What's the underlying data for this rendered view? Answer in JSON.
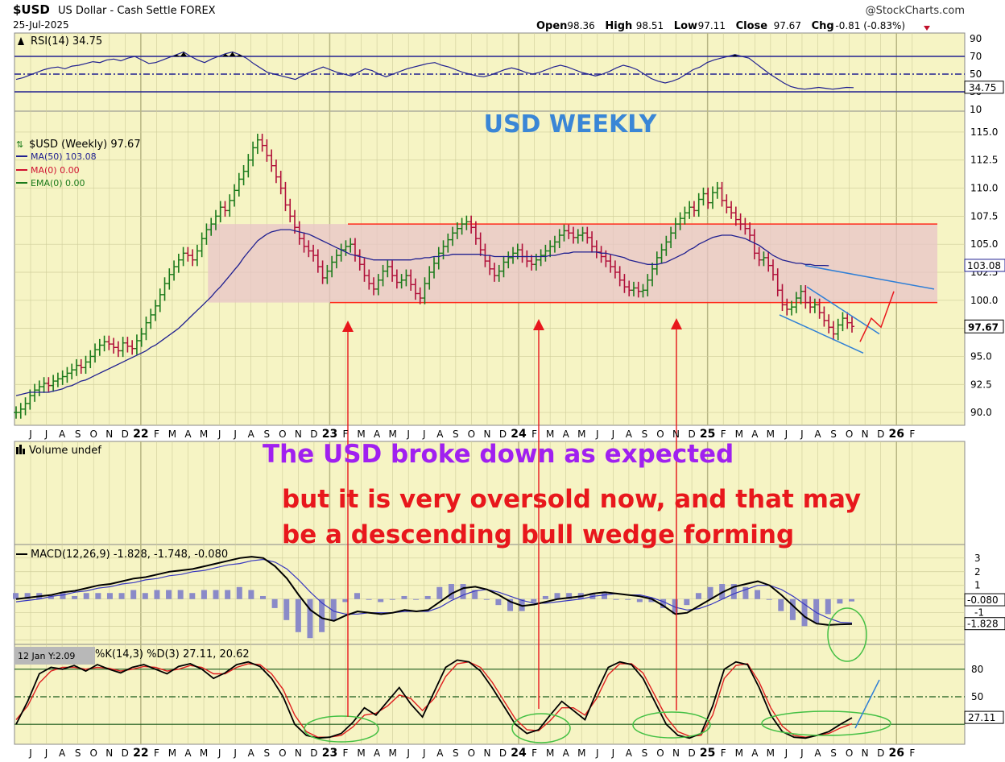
{
  "header": {
    "symbol": "$USD",
    "name": "US Dollar - Cash Settle FOREX",
    "date": "25-Jul-2025",
    "source": "@StockCharts.com",
    "ohlc": [
      {
        "label": "Open",
        "value": "98.36"
      },
      {
        "label": "High",
        "value": "98.51"
      },
      {
        "label": "Low",
        "value": "97.11"
      },
      {
        "label": "Close",
        "value": "97.67"
      },
      {
        "label": "Chg",
        "value": "-0.81 (-0.83%)"
      }
    ]
  },
  "colors": {
    "panel_bg": "#f6f4c4",
    "grid": "#cfcd9a",
    "up_candle": "#1a7a1a",
    "down_candle": "#b0103a",
    "ma50": "#202090",
    "range_box": "#e8c4c8",
    "range_line": "#ff2a1a",
    "annotation_red": "#e8171c",
    "annotation_purple": "#a020f0",
    "annotation_blue": "#2f7fd6",
    "ellipse_green": "#44c044",
    "macd_line": "#000000",
    "macd_signal": "#3838c0",
    "macd_hist": "#8a8ac8",
    "stoch_k": "#000000",
    "stoch_d": "#e02020"
  },
  "chart_data": [
    {
      "panel": "rsi",
      "type": "line",
      "title": "RSI(14) 34.75",
      "current": 34.75,
      "ylim": [
        10,
        90
      ],
      "reference_lines": [
        70,
        50,
        30
      ],
      "ticks": [
        "90",
        "70",
        "50",
        "30",
        "10"
      ],
      "series": [
        {
          "values": [
            44,
            46,
            49,
            52,
            55,
            57,
            58,
            56,
            59,
            60,
            62,
            64,
            63,
            66,
            67,
            65,
            68,
            70,
            66,
            62,
            63,
            66,
            69,
            72,
            75,
            70,
            66,
            63,
            67,
            70,
            73,
            75,
            72,
            68,
            62,
            57,
            52,
            50,
            48,
            46,
            44,
            48,
            52,
            55,
            58,
            55,
            52,
            50,
            48,
            52,
            56,
            54,
            50,
            47,
            50,
            53,
            56,
            58,
            60,
            62,
            63,
            60,
            58,
            55,
            52,
            50,
            48,
            47,
            49,
            52,
            55,
            57,
            55,
            52,
            50,
            52,
            55,
            58,
            60,
            58,
            55,
            52,
            50,
            48,
            50,
            53,
            57,
            60,
            58,
            55,
            50,
            45,
            42,
            40,
            42,
            45,
            50,
            55,
            58,
            63,
            66,
            68,
            70,
            72,
            70,
            68,
            62,
            56,
            50,
            45,
            40,
            36,
            34,
            33,
            34,
            35,
            34,
            33,
            34,
            35,
            34.75
          ]
        }
      ]
    },
    {
      "panel": "price",
      "type": "line",
      "title": "$USD (Weekly) 97.67",
      "subtitle": "USD WEEKLY",
      "legend": [
        "MA(50) 103.08",
        "MA(0) 0.00",
        "EMA(0) 0.00"
      ],
      "current": 97.67,
      "ma50_current": 103.08,
      "ylim": [
        89,
        116
      ],
      "y_ticks": [
        "115.0",
        "112.5",
        "110.0",
        "107.5",
        "105.0",
        "102.5",
        "100.0",
        "97.5",
        "95.0",
        "92.5",
        "90.0"
      ],
      "x_labels": [
        "J",
        "J",
        "A",
        "S",
        "O",
        "N",
        "D",
        "22",
        "F",
        "M",
        "A",
        "M",
        "J",
        "J",
        "A",
        "S",
        "O",
        "N",
        "D",
        "23",
        "F",
        "M",
        "A",
        "M",
        "J",
        "J",
        "A",
        "S",
        "O",
        "N",
        "D",
        "24",
        "F",
        "M",
        "A",
        "M",
        "J",
        "J",
        "A",
        "S",
        "O",
        "N",
        "D",
        "25",
        "F",
        "M",
        "A",
        "M",
        "J",
        "J",
        "A",
        "S",
        "O",
        "N",
        "D",
        "26",
        "F"
      ],
      "x_label_positions": [
        0,
        1,
        2,
        3,
        4,
        5,
        6,
        7,
        8,
        9,
        10,
        11,
        12,
        13,
        14,
        15,
        16,
        17,
        18,
        19,
        20,
        21,
        22,
        23,
        24,
        25,
        26,
        27,
        28,
        29,
        30,
        31,
        32,
        33,
        34,
        35,
        36,
        37,
        38,
        39,
        40,
        41,
        42,
        43,
        44,
        45,
        46,
        47,
        48,
        49,
        50,
        51,
        52,
        53,
        54,
        55,
        56
      ],
      "series": [
        {
          "values": [
            90.0,
            90.3,
            90.8,
            91.5,
            92.0,
            92.3,
            92.6,
            92.4,
            92.8,
            93.0,
            93.2,
            93.5,
            93.8,
            94.2,
            94.0,
            94.5,
            95.0,
            95.6,
            96.0,
            96.3,
            96.1,
            95.8,
            95.5,
            96.2,
            95.9,
            95.7,
            96.4,
            97.0,
            98.0,
            98.7,
            99.5,
            100.5,
            101.5,
            102.3,
            103.0,
            103.6,
            104.2,
            104.0,
            103.6,
            104.4,
            105.5,
            106.3,
            106.8,
            107.5,
            108.3,
            108.0,
            108.9,
            109.8,
            110.8,
            111.5,
            112.5,
            113.6,
            114.3,
            113.8,
            112.9,
            112.0,
            111.0,
            110.0,
            108.5,
            107.5,
            106.5,
            105.5,
            104.8,
            104.4,
            104.0,
            103.0,
            102.0,
            102.6,
            103.4,
            104.0,
            104.5,
            104.8,
            105.0,
            104.0,
            103.2,
            102.2,
            101.5,
            101.0,
            101.8,
            102.6,
            103.0,
            102.2,
            101.6,
            101.8,
            102.2,
            101.4,
            100.6,
            100.2,
            101.5,
            102.5,
            103.3,
            104.2,
            104.8,
            105.4,
            106.0,
            106.4,
            106.8,
            107.0,
            106.5,
            105.5,
            104.5,
            103.5,
            102.8,
            102.2,
            102.6,
            103.4,
            103.8,
            104.2,
            104.5,
            103.9,
            103.5,
            103.2,
            103.6,
            104.0,
            104.4,
            104.8,
            105.2,
            105.8,
            106.2,
            106.0,
            105.6,
            105.8,
            106.0,
            105.6,
            104.8,
            104.3,
            103.9,
            103.5,
            103.0,
            102.5,
            101.8,
            101.2,
            100.9,
            101.1,
            100.8,
            100.9,
            101.8,
            102.8,
            103.8,
            104.5,
            105.2,
            106.0,
            106.8,
            107.3,
            107.8,
            108.3,
            108.0,
            109.0,
            109.5,
            108.7,
            109.6,
            110.0,
            108.9,
            108.3,
            107.8,
            107.2,
            106.8,
            106.4,
            105.8,
            104.2,
            103.6,
            103.8,
            103.1,
            102.3,
            100.9,
            99.6,
            99.2,
            99.4,
            100.2,
            100.8,
            99.8,
            99.4,
            99.6,
            98.9,
            98.2,
            97.6,
            97.0,
            97.8,
            98.4,
            98.0,
            97.67
          ],
          "name": "price"
        },
        {
          "values": [
            91.5,
            91.6,
            91.7,
            91.8,
            91.8,
            91.8,
            91.8,
            91.8,
            91.9,
            92.0,
            92.1,
            92.3,
            92.4,
            92.6,
            92.8,
            92.9,
            93.1,
            93.3,
            93.5,
            93.7,
            93.9,
            94.1,
            94.3,
            94.5,
            94.7,
            94.9,
            95.1,
            95.3,
            95.5,
            95.8,
            96.0,
            96.3,
            96.6,
            96.9,
            97.2,
            97.5,
            97.9,
            98.3,
            98.7,
            99.1,
            99.5,
            99.9,
            100.3,
            100.8,
            101.2,
            101.7,
            102.2,
            102.7,
            103.2,
            103.8,
            104.3,
            104.8,
            105.3,
            105.6,
            105.9,
            106.1,
            106.2,
            106.3,
            106.3,
            106.3,
            106.2,
            106.1,
            106.0,
            105.9,
            105.7,
            105.5,
            105.3,
            105.1,
            104.9,
            104.7,
            104.5,
            104.3,
            104.1,
            104.0,
            103.9,
            103.8,
            103.7,
            103.6,
            103.6,
            103.6,
            103.6,
            103.6,
            103.6,
            103.6,
            103.6,
            103.6,
            103.7,
            103.7,
            103.8,
            103.8,
            103.9,
            103.9,
            104.0,
            104.0,
            104.1,
            104.1,
            104.1,
            104.1,
            104.1,
            104.1,
            104.1,
            104.0,
            104.0,
            103.9,
            103.9,
            103.9,
            103.9,
            103.9,
            103.9,
            103.9,
            103.9,
            103.9,
            103.9,
            103.9,
            103.9,
            104.0,
            104.0,
            104.1,
            104.2,
            104.2,
            104.3,
            104.3,
            104.3,
            104.3,
            104.3,
            104.3,
            104.2,
            104.2,
            104.1,
            104.0,
            103.9,
            103.8,
            103.6,
            103.5,
            103.4,
            103.3,
            103.2,
            103.2,
            103.2,
            103.3,
            103.4,
            103.6,
            103.8,
            104.0,
            104.2,
            104.5,
            104.7,
            105.0,
            105.2,
            105.4,
            105.6,
            105.7,
            105.8,
            105.8,
            105.8,
            105.7,
            105.6,
            105.5,
            105.3,
            105.1,
            104.9,
            104.6,
            104.3,
            104.0,
            103.8,
            103.6,
            103.5,
            103.4,
            103.3,
            103.3,
            103.2,
            103.2,
            103.1,
            103.1,
            103.1,
            103.08
          ],
          "name": "MA(50)"
        }
      ],
      "range_box": {
        "top": 106.8,
        "bottom": 99.8
      },
      "wedge": {
        "upper_start": 101.2,
        "upper_end": 97.0,
        "lower_start": 98.7,
        "lower_end": 95.3
      },
      "ma_projection": {
        "start": 103.1,
        "end": 101.0
      },
      "projection_path": [
        96.3,
        98.4,
        97.6,
        100.8
      ]
    },
    {
      "panel": "volume",
      "type": "bar",
      "title": "Volume undef",
      "values": []
    },
    {
      "panel": "macd",
      "type": "line",
      "title": "MACD(12,26,9) -1.828, -1.748, -0.080",
      "macd": -1.828,
      "signal": -1.748,
      "histogram": -0.08,
      "ylim": [
        -3.2,
        3.4
      ],
      "ticks": [
        "3",
        "2",
        "1",
        "-0.080",
        "-1",
        "-1.828"
      ],
      "series": [
        {
          "name": "MACD",
          "values": [
            0.0,
            0.1,
            0.2,
            0.3,
            0.5,
            0.6,
            0.8,
            1.0,
            1.1,
            1.3,
            1.5,
            1.6,
            1.8,
            2.0,
            2.1,
            2.2,
            2.4,
            2.6,
            2.8,
            3.0,
            3.1,
            3.0,
            2.4,
            1.5,
            0.3,
            -0.8,
            -1.4,
            -1.6,
            -1.2,
            -0.9,
            -1.0,
            -1.1,
            -1.0,
            -0.8,
            -0.9,
            -0.8,
            -0.2,
            0.4,
            0.8,
            0.9,
            0.7,
            0.3,
            -0.2,
            -0.5,
            -0.4,
            -0.2,
            0.0,
            0.1,
            0.2,
            0.4,
            0.5,
            0.4,
            0.3,
            0.2,
            0.0,
            -0.5,
            -1.1,
            -1.0,
            -0.5,
            0.0,
            0.5,
            0.9,
            1.1,
            1.3,
            1.0,
            0.3,
            -0.5,
            -1.3,
            -1.8,
            -1.9,
            -1.85,
            -1.828
          ]
        },
        {
          "name": "Signal",
          "values": [
            -0.2,
            -0.1,
            0.0,
            0.2,
            0.3,
            0.5,
            0.6,
            0.8,
            0.9,
            1.1,
            1.2,
            1.4,
            1.5,
            1.7,
            1.8,
            2.0,
            2.1,
            2.3,
            2.5,
            2.6,
            2.8,
            2.9,
            2.7,
            2.2,
            1.4,
            0.5,
            -0.3,
            -0.9,
            -1.1,
            -1.1,
            -1.0,
            -1.0,
            -1.0,
            -0.9,
            -0.9,
            -0.9,
            -0.6,
            -0.1,
            0.3,
            0.6,
            0.7,
            0.5,
            0.2,
            -0.1,
            -0.3,
            -0.3,
            -0.2,
            -0.1,
            0.0,
            0.2,
            0.3,
            0.4,
            0.3,
            0.3,
            0.1,
            -0.2,
            -0.6,
            -0.8,
            -0.7,
            -0.4,
            0.0,
            0.4,
            0.7,
            1.0,
            1.0,
            0.7,
            0.2,
            -0.4,
            -1.0,
            -1.4,
            -1.7,
            -1.748
          ]
        }
      ]
    },
    {
      "panel": "stochastic",
      "type": "line",
      "title": "%K(14,3) %D(3) 27.11, 20.62",
      "k": 27.11,
      "d": 20.62,
      "ylim": [
        0,
        100
      ],
      "reference_lines": [
        80,
        50,
        20
      ],
      "ticks": [
        "80",
        "50",
        "27.11"
      ],
      "hover_label": "12 Jan Y:2.09",
      "series": [
        {
          "name": "%K",
          "values": [
            20,
            45,
            75,
            82,
            80,
            84,
            78,
            85,
            80,
            76,
            82,
            85,
            80,
            75,
            83,
            86,
            80,
            70,
            76,
            85,
            88,
            83,
            70,
            50,
            20,
            8,
            5,
            6,
            10,
            22,
            38,
            30,
            45,
            60,
            42,
            28,
            55,
            82,
            90,
            88,
            78,
            60,
            40,
            20,
            10,
            14,
            30,
            45,
            35,
            25,
            55,
            82,
            88,
            85,
            70,
            45,
            20,
            8,
            5,
            10,
            40,
            80,
            88,
            85,
            60,
            30,
            12,
            6,
            5,
            8,
            12,
            20,
            27.11
          ]
        },
        {
          "name": "%D",
          "values": [
            25,
            40,
            65,
            78,
            82,
            82,
            80,
            82,
            81,
            78,
            80,
            83,
            82,
            78,
            80,
            84,
            82,
            75,
            75,
            82,
            86,
            85,
            75,
            58,
            30,
            12,
            6,
            6,
            8,
            17,
            30,
            32,
            40,
            52,
            48,
            35,
            48,
            72,
            86,
            88,
            82,
            66,
            46,
            26,
            14,
            13,
            24,
            38,
            38,
            30,
            48,
            74,
            86,
            86,
            76,
            52,
            28,
            12,
            7,
            8,
            30,
            70,
            84,
            86,
            66,
            38,
            18,
            8,
            6,
            8,
            10,
            16,
            20.62
          ]
        }
      ]
    }
  ],
  "annotations": {
    "headline": "The USD broke down as expected",
    "line1": "but it is very oversold now, and that may",
    "line2": "be a descending bull wedge forming"
  }
}
